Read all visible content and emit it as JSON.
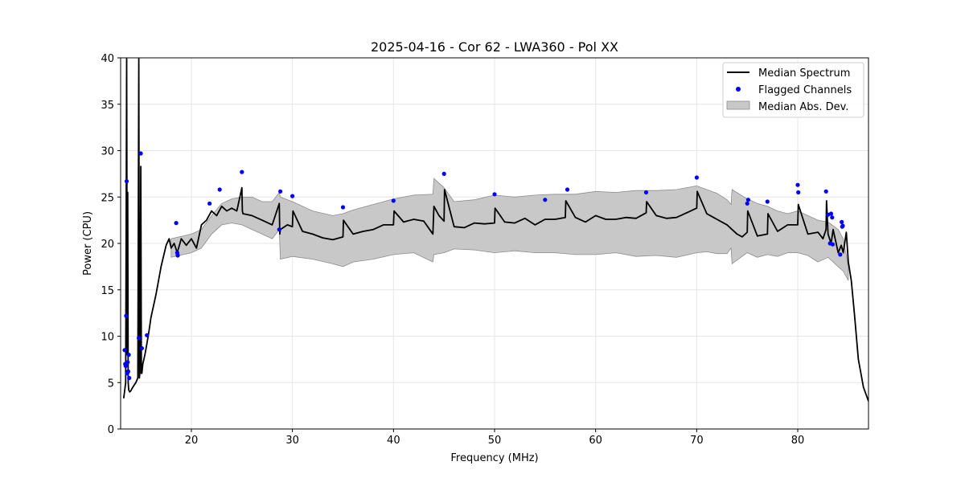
{
  "chart_data": {
    "type": "line",
    "title": "2025-04-16 - Cor 62 - LWA360 - Pol XX",
    "xlabel": "Frequency (MHz)",
    "ylabel": "Power (CPU)",
    "xlim": [
      13.0,
      87.0
    ],
    "ylim": [
      0,
      40
    ],
    "x_ticks": [
      20,
      30,
      40,
      50,
      60,
      70,
      80
    ],
    "y_ticks": [
      0,
      5,
      10,
      15,
      20,
      25,
      30,
      35,
      40
    ],
    "x_tick_labels": [
      "20",
      "30",
      "40",
      "50",
      "60",
      "70",
      "80"
    ],
    "y_tick_labels": [
      "0",
      "5",
      "10",
      "15",
      "20",
      "25",
      "30",
      "35",
      "40"
    ],
    "grid": true,
    "legend_position": "top-right",
    "legend": {
      "median": "Median Spectrum",
      "flagged": "Flagged Channels",
      "mad": "Median Abs. Dev."
    },
    "colors": {
      "median": "#000000",
      "flagged": "#0000ff",
      "band_fill": "#c8c8c8",
      "band_edge": "#8c8c8c",
      "grid": "#e6e6e6"
    },
    "median_spectrum": {
      "x": [
        13.3,
        13.5,
        13.6,
        13.65,
        13.7,
        13.75,
        13.8,
        13.9,
        14.0,
        14.2,
        14.5,
        14.7,
        14.8,
        14.85,
        14.9,
        15.0,
        15.05,
        15.1,
        15.15,
        15.2,
        15.4,
        15.6,
        15.8,
        16.0,
        16.5,
        17.0,
        17.5,
        17.8,
        18.0,
        18.3,
        18.6,
        19.0,
        19.5,
        20.0,
        20.5,
        21.0,
        21.5,
        22.0,
        22.5,
        23.0,
        23.5,
        24.0,
        24.5,
        25.0,
        25.05,
        25.1,
        26.0,
        27.0,
        28.0,
        28.7,
        28.75,
        28.8,
        29.5,
        30.0,
        30.05,
        31.0,
        32.0,
        33.0,
        34.0,
        35.0,
        35.05,
        36.0,
        37.0,
        38.0,
        39.0,
        40.0,
        40.05,
        41.0,
        42.0,
        43.0,
        43.9,
        44.0,
        44.5,
        45.0,
        45.05,
        46.0,
        47.0,
        48.0,
        49.0,
        50.0,
        50.05,
        51.0,
        52.0,
        53.0,
        54.0,
        55.0,
        56.0,
        57.0,
        57.05,
        58.0,
        59.0,
        60.0,
        61.0,
        62.0,
        63.0,
        64.0,
        65.0,
        65.05,
        66.0,
        67.0,
        68.0,
        69.0,
        70.0,
        70.05,
        71.0,
        72.0,
        73.0,
        73.5,
        74.0,
        74.5,
        75.0,
        75.05,
        76.0,
        77.0,
        77.05,
        78.0,
        79.0,
        80.0,
        80.05,
        81.0,
        82.0,
        82.5,
        82.8,
        82.85,
        83.0,
        83.3,
        83.5,
        83.8,
        84.0,
        84.3,
        84.5,
        84.8,
        85.0,
        85.3,
        85.6,
        86.0,
        86.5,
        87.0
      ],
      "y": [
        3.3,
        5.0,
        40.0,
        8.0,
        25.5,
        5.0,
        4.2,
        4.0,
        4.1,
        4.5,
        5.0,
        5.5,
        40.0,
        5.5,
        6.0,
        28.3,
        6.0,
        6.0,
        6.5,
        7.0,
        8.0,
        9.2,
        10.5,
        12.0,
        14.5,
        17.5,
        19.8,
        20.5,
        19.5,
        20.0,
        19.0,
        20.5,
        19.8,
        20.5,
        19.5,
        22.0,
        22.5,
        23.5,
        23.0,
        24.0,
        23.5,
        23.8,
        23.5,
        26.0,
        23.5,
        23.2,
        23.0,
        22.5,
        22.0,
        24.3,
        21.0,
        21.5,
        22.0,
        21.8,
        23.5,
        21.3,
        21.0,
        20.6,
        20.4,
        20.7,
        22.5,
        21.0,
        21.3,
        21.5,
        22.0,
        22.0,
        23.5,
        22.3,
        22.6,
        22.4,
        21.0,
        24.0,
        23.0,
        22.4,
        25.8,
        21.8,
        21.7,
        22.2,
        22.1,
        22.2,
        23.8,
        22.3,
        22.2,
        22.7,
        22.0,
        22.6,
        22.6,
        22.8,
        24.6,
        22.8,
        22.3,
        23.0,
        22.6,
        22.6,
        22.8,
        22.7,
        23.3,
        24.5,
        23.0,
        22.7,
        22.8,
        23.3,
        23.8,
        25.6,
        23.2,
        22.6,
        22.0,
        21.5,
        21.0,
        20.7,
        21.2,
        23.5,
        20.8,
        21.0,
        23.2,
        21.3,
        22.0,
        22.0,
        24.2,
        21.0,
        21.2,
        20.5,
        21.5,
        24.6,
        21.0,
        20.0,
        21.5,
        20.0,
        19.0,
        19.8,
        19.0,
        21.2,
        18.0,
        16.0,
        12.5,
        7.5,
        4.5,
        3.0
      ]
    },
    "mad_band": {
      "x": [
        18.0,
        20.0,
        21.0,
        22.0,
        23.0,
        24.0,
        25.0,
        26.0,
        27.0,
        28.0,
        28.7,
        28.8,
        30.0,
        32.0,
        34.0,
        35.0,
        36.0,
        38.0,
        40.0,
        42.0,
        43.9,
        44.0,
        45.0,
        46.0,
        48.0,
        50.0,
        52.0,
        54.0,
        56.0,
        58.0,
        60.0,
        62.0,
        64.0,
        66.0,
        68.0,
        70.0,
        71.0,
        72.0,
        73.0,
        73.4,
        73.5,
        75.0,
        76.0,
        77.0,
        78.0,
        79.0,
        80.0,
        81.0,
        82.0,
        83.0,
        84.0,
        84.5,
        85.0
      ],
      "upper": [
        20.5,
        21.0,
        21.5,
        23.0,
        24.3,
        24.8,
        25.0,
        25.0,
        24.5,
        24.5,
        25.5,
        25.0,
        24.5,
        23.5,
        23.0,
        23.2,
        23.6,
        24.2,
        24.8,
        25.2,
        25.3,
        27.0,
        26.0,
        24.5,
        24.7,
        25.2,
        25.0,
        25.2,
        25.3,
        25.3,
        25.6,
        25.5,
        25.7,
        25.7,
        25.8,
        26.2,
        25.8,
        25.4,
        24.7,
        24.2,
        25.8,
        24.8,
        24.3,
        24.0,
        23.5,
        23.2,
        23.5,
        23.0,
        22.5,
        22.3,
        21.5,
        20.5,
        17.5
      ],
      "lower": [
        18.5,
        19.0,
        19.5,
        21.0,
        22.0,
        22.2,
        22.0,
        21.5,
        21.0,
        20.5,
        21.5,
        18.3,
        18.6,
        18.3,
        17.8,
        17.5,
        18.0,
        18.3,
        18.8,
        19.0,
        18.0,
        18.8,
        19.0,
        19.4,
        19.3,
        19.0,
        19.2,
        19.0,
        19.0,
        18.8,
        18.8,
        19.0,
        18.6,
        18.7,
        18.5,
        19.0,
        19.1,
        18.9,
        18.9,
        19.5,
        17.8,
        19.0,
        18.5,
        18.8,
        18.6,
        19.0,
        19.0,
        18.7,
        18.0,
        18.5,
        17.5,
        17.0,
        16.0
      ]
    },
    "flagged_channels": {
      "x": [
        13.4,
        13.45,
        13.5,
        13.55,
        13.6,
        13.65,
        13.7,
        13.75,
        13.8,
        13.85,
        14.8,
        15.0,
        15.1,
        15.6,
        18.5,
        18.6,
        18.65,
        21.8,
        22.8,
        25.0,
        28.7,
        28.8,
        30.0,
        35.0,
        40.0,
        45.0,
        50.0,
        55.0,
        57.2,
        65.0,
        70.0,
        75.0,
        75.1,
        77.0,
        80.0,
        80.05,
        82.8,
        83.0,
        83.2,
        83.3,
        83.4,
        83.45,
        84.2,
        84.35,
        84.4,
        84.45
      ],
      "y": [
        8.5,
        7.0,
        6.8,
        12.2,
        26.7,
        6.0,
        7.2,
        6.2,
        8.0,
        5.5,
        9.8,
        29.7,
        8.7,
        10.1,
        22.2,
        19.0,
        18.7,
        24.3,
        25.8,
        27.7,
        21.5,
        25.6,
        25.1,
        23.9,
        24.6,
        27.5,
        25.3,
        24.7,
        25.8,
        25.5,
        27.1,
        24.3,
        24.7,
        24.5,
        26.3,
        25.5,
        25.6,
        23.1,
        20.0,
        23.2,
        22.8,
        19.9,
        18.8,
        22.3,
        21.8,
        21.9
      ]
    }
  }
}
